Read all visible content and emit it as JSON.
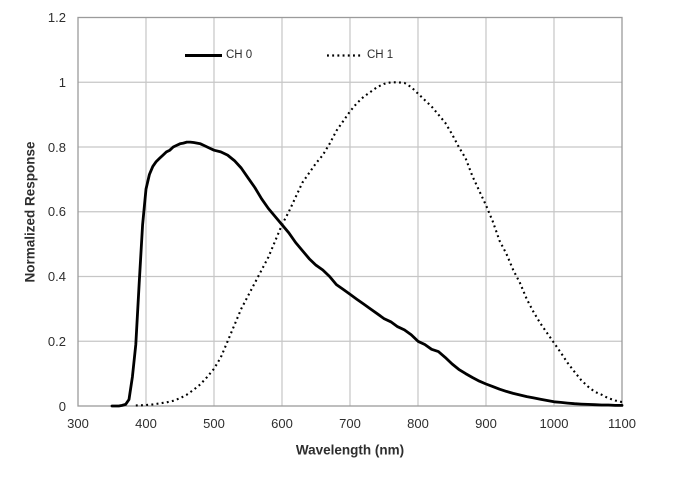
{
  "chart_data": {
    "type": "line",
    "title": "",
    "xlabel": "Wavelength (nm)",
    "ylabel": "Normalized Response",
    "xlim": [
      300,
      1100
    ],
    "ylim": [
      0,
      1.2
    ],
    "x_ticks": [
      300,
      400,
      500,
      600,
      700,
      800,
      900,
      1000,
      1100
    ],
    "y_ticks": [
      {
        "value": 0,
        "label": "0"
      },
      {
        "value": 0.2,
        "label": "0.2"
      },
      {
        "value": 0.4,
        "label": "0.4"
      },
      {
        "value": 0.6,
        "label": "0.6"
      },
      {
        "value": 0.8,
        "label": "0.8"
      },
      {
        "value": 1,
        "label": "1"
      },
      {
        "value": 1.2,
        "label": "1.2"
      }
    ],
    "grid": true,
    "legend_position": "top-inside",
    "series": [
      {
        "name": "CH 0",
        "style": "solid",
        "color": "#000000",
        "points": [
          [
            350,
            0
          ],
          [
            355,
            0
          ],
          [
            360,
            0
          ],
          [
            365,
            0.002
          ],
          [
            370,
            0.005
          ],
          [
            375,
            0.02
          ],
          [
            380,
            0.09
          ],
          [
            385,
            0.19
          ],
          [
            390,
            0.38
          ],
          [
            395,
            0.56
          ],
          [
            400,
            0.67
          ],
          [
            405,
            0.715
          ],
          [
            410,
            0.74
          ],
          [
            415,
            0.755
          ],
          [
            420,
            0.765
          ],
          [
            425,
            0.775
          ],
          [
            430,
            0.785
          ],
          [
            435,
            0.79
          ],
          [
            440,
            0.8
          ],
          [
            445,
            0.805
          ],
          [
            450,
            0.81
          ],
          [
            455,
            0.812
          ],
          [
            460,
            0.815
          ],
          [
            465,
            0.815
          ],
          [
            470,
            0.814
          ],
          [
            475,
            0.812
          ],
          [
            480,
            0.81
          ],
          [
            485,
            0.805
          ],
          [
            490,
            0.8
          ],
          [
            495,
            0.795
          ],
          [
            500,
            0.79
          ],
          [
            510,
            0.785
          ],
          [
            520,
            0.775
          ],
          [
            530,
            0.758
          ],
          [
            540,
            0.735
          ],
          [
            550,
            0.705
          ],
          [
            560,
            0.675
          ],
          [
            570,
            0.64
          ],
          [
            580,
            0.61
          ],
          [
            590,
            0.585
          ],
          [
            600,
            0.56
          ],
          [
            610,
            0.535
          ],
          [
            620,
            0.505
          ],
          [
            630,
            0.48
          ],
          [
            640,
            0.455
          ],
          [
            650,
            0.435
          ],
          [
            660,
            0.42
          ],
          [
            670,
            0.4
          ],
          [
            680,
            0.375
          ],
          [
            690,
            0.36
          ],
          [
            700,
            0.345
          ],
          [
            710,
            0.33
          ],
          [
            720,
            0.315
          ],
          [
            730,
            0.3
          ],
          [
            740,
            0.285
          ],
          [
            750,
            0.27
          ],
          [
            760,
            0.26
          ],
          [
            770,
            0.245
          ],
          [
            780,
            0.235
          ],
          [
            790,
            0.22
          ],
          [
            800,
            0.2
          ],
          [
            810,
            0.19
          ],
          [
            820,
            0.175
          ],
          [
            830,
            0.168
          ],
          [
            840,
            0.15
          ],
          [
            850,
            0.13
          ],
          [
            860,
            0.113
          ],
          [
            870,
            0.1
          ],
          [
            880,
            0.088
          ],
          [
            890,
            0.077
          ],
          [
            900,
            0.068
          ],
          [
            910,
            0.06
          ],
          [
            920,
            0.052
          ],
          [
            930,
            0.045
          ],
          [
            940,
            0.039
          ],
          [
            950,
            0.034
          ],
          [
            960,
            0.029
          ],
          [
            970,
            0.025
          ],
          [
            980,
            0.021
          ],
          [
            990,
            0.017
          ],
          [
            1000,
            0.013
          ],
          [
            1010,
            0.011
          ],
          [
            1020,
            0.009
          ],
          [
            1030,
            0.007
          ],
          [
            1040,
            0.006
          ],
          [
            1050,
            0.005
          ],
          [
            1060,
            0.004
          ],
          [
            1070,
            0.003
          ],
          [
            1080,
            0.003
          ],
          [
            1090,
            0.002
          ],
          [
            1100,
            0.002
          ]
        ]
      },
      {
        "name": "CH 1",
        "style": "dotted",
        "color": "#000000",
        "points": [
          [
            385,
            0.002
          ],
          [
            390,
            0.002
          ],
          [
            400,
            0.003
          ],
          [
            410,
            0.005
          ],
          [
            420,
            0.008
          ],
          [
            430,
            0.011
          ],
          [
            440,
            0.016
          ],
          [
            450,
            0.024
          ],
          [
            460,
            0.035
          ],
          [
            470,
            0.05
          ],
          [
            480,
            0.067
          ],
          [
            490,
            0.09
          ],
          [
            500,
            0.115
          ],
          [
            510,
            0.15
          ],
          [
            520,
            0.2
          ],
          [
            530,
            0.25
          ],
          [
            540,
            0.3
          ],
          [
            550,
            0.34
          ],
          [
            560,
            0.38
          ],
          [
            570,
            0.42
          ],
          [
            580,
            0.46
          ],
          [
            590,
            0.51
          ],
          [
            600,
            0.56
          ],
          [
            610,
            0.6
          ],
          [
            620,
            0.645
          ],
          [
            630,
            0.69
          ],
          [
            640,
            0.72
          ],
          [
            650,
            0.75
          ],
          [
            660,
            0.775
          ],
          [
            670,
            0.81
          ],
          [
            680,
            0.85
          ],
          [
            690,
            0.88
          ],
          [
            700,
            0.91
          ],
          [
            710,
            0.935
          ],
          [
            720,
            0.955
          ],
          [
            730,
            0.97
          ],
          [
            740,
            0.985
          ],
          [
            750,
            0.995
          ],
          [
            760,
            1
          ],
          [
            770,
            1
          ],
          [
            780,
            0.998
          ],
          [
            790,
            0.985
          ],
          [
            800,
            0.965
          ],
          [
            810,
            0.945
          ],
          [
            820,
            0.925
          ],
          [
            830,
            0.9
          ],
          [
            840,
            0.875
          ],
          [
            850,
            0.84
          ],
          [
            860,
            0.8
          ],
          [
            870,
            0.765
          ],
          [
            880,
            0.71
          ],
          [
            890,
            0.665
          ],
          [
            900,
            0.62
          ],
          [
            910,
            0.57
          ],
          [
            920,
            0.51
          ],
          [
            930,
            0.47
          ],
          [
            940,
            0.42
          ],
          [
            950,
            0.38
          ],
          [
            960,
            0.33
          ],
          [
            970,
            0.29
          ],
          [
            980,
            0.255
          ],
          [
            990,
            0.225
          ],
          [
            1000,
            0.195
          ],
          [
            1010,
            0.165
          ],
          [
            1020,
            0.133
          ],
          [
            1030,
            0.106
          ],
          [
            1040,
            0.08
          ],
          [
            1050,
            0.06
          ],
          [
            1060,
            0.044
          ],
          [
            1070,
            0.035
          ],
          [
            1080,
            0.024
          ],
          [
            1090,
            0.017
          ],
          [
            1100,
            0.012
          ]
        ]
      }
    ]
  },
  "colors": {
    "background": "#ffffff",
    "gridline": "#c6c6c6",
    "frame": "#9b9b9b",
    "curve": "#000000",
    "text": "#2e2e2e"
  }
}
